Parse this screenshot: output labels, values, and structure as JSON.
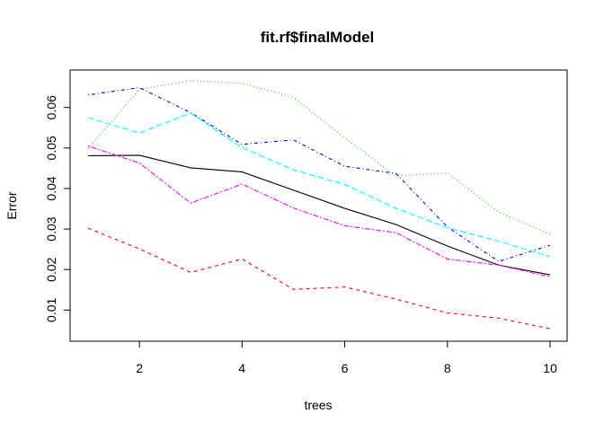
{
  "chart_data": {
    "type": "line",
    "title": "fit.rf$finalModel",
    "xlabel": "trees",
    "ylabel": "Error",
    "xlim": [
      1,
      10
    ],
    "ylim": [
      0.0052,
      0.0668
    ],
    "x_ticks": [
      2,
      4,
      6,
      8,
      10
    ],
    "y_ticks": [
      0.01,
      0.02,
      0.03,
      0.04,
      0.05,
      0.06
    ],
    "x_tick_labels": [
      "2",
      "4",
      "6",
      "8",
      "10"
    ],
    "y_tick_labels": [
      "0.01",
      "0.02",
      "0.03",
      "0.04",
      "0.05",
      "0.06"
    ],
    "grid": false,
    "legend": "none",
    "x": [
      1,
      2,
      3,
      4,
      5,
      6,
      7,
      8,
      9,
      10
    ],
    "series": [
      {
        "color": "#000000",
        "dash": "solid",
        "values": [
          0.0481,
          0.0482,
          0.0451,
          0.0441,
          0.0396,
          0.0351,
          0.0311,
          0.0258,
          0.0211,
          0.0187
        ]
      },
      {
        "color": "#ff0000",
        "dash": "dashed",
        "values": [
          0.0302,
          0.0251,
          0.0193,
          0.0226,
          0.0151,
          0.0157,
          0.0127,
          0.0093,
          0.008,
          0.0054
        ]
      },
      {
        "color": "#00cd00",
        "dash": "dotted",
        "values": [
          0.0498,
          0.0645,
          0.0666,
          0.066,
          0.0625,
          0.0525,
          0.0431,
          0.0438,
          0.0342,
          0.0287
        ]
      },
      {
        "color": "#0000ff",
        "dash": "dotdash",
        "values": [
          0.0631,
          0.0649,
          0.0587,
          0.0509,
          0.052,
          0.0455,
          0.0437,
          0.0305,
          0.022,
          0.026
        ]
      },
      {
        "color": "#00ffff",
        "dash": "longdash",
        "values": [
          0.0575,
          0.0537,
          0.0586,
          0.0501,
          0.0446,
          0.041,
          0.0351,
          0.0303,
          0.027,
          0.0232
        ]
      },
      {
        "color": "#ff00ff",
        "dash": "twodash",
        "values": [
          0.0505,
          0.0463,
          0.0364,
          0.0411,
          0.0352,
          0.0308,
          0.0291,
          0.0226,
          0.0211,
          0.0182
        ]
      }
    ]
  }
}
